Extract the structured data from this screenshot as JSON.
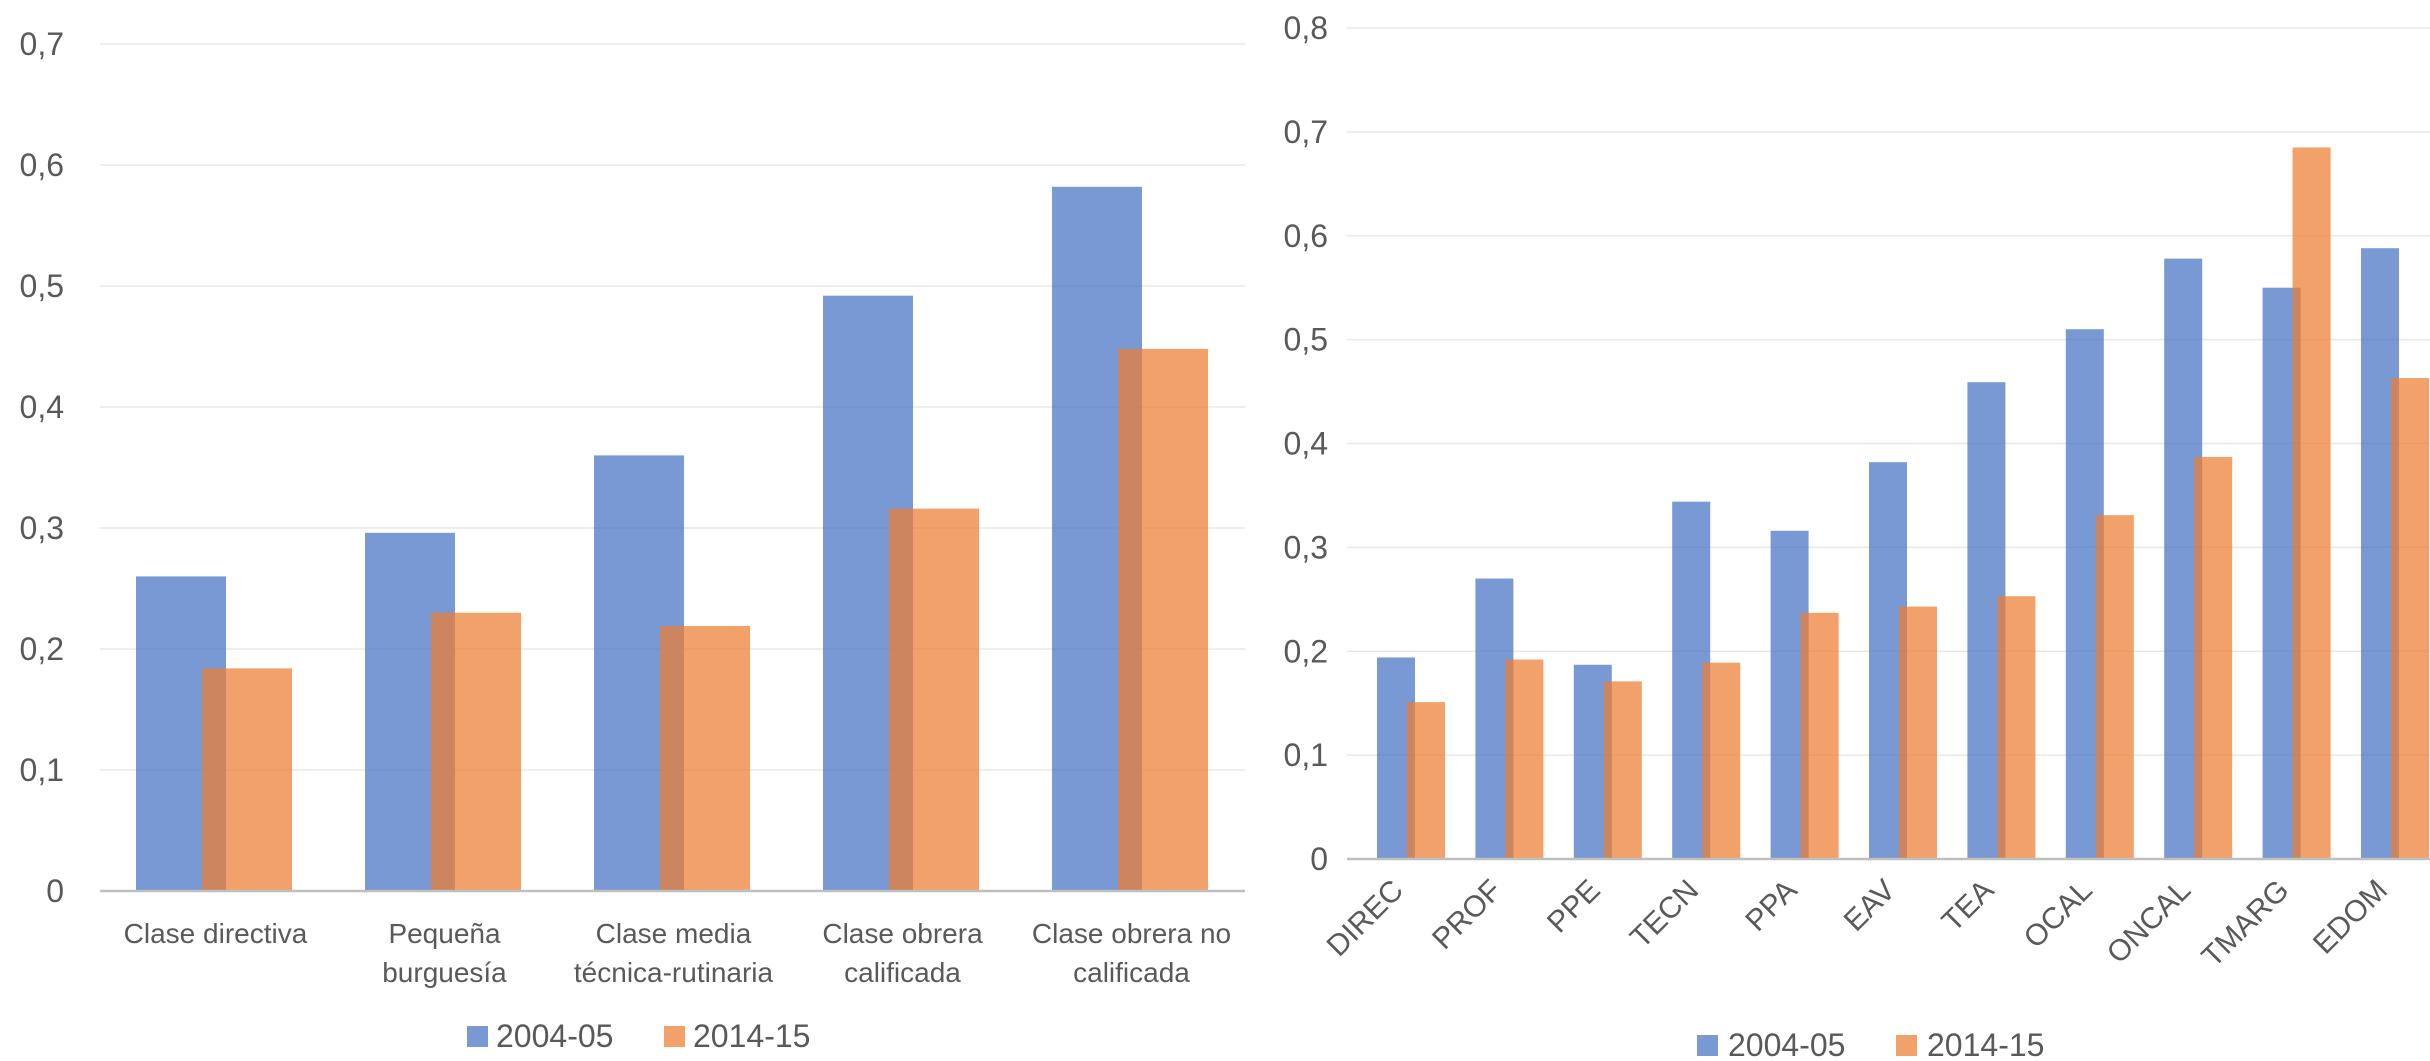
{
  "chart_data": [
    {
      "type": "bar",
      "categories": [
        "Clase directiva",
        "Pequeña burguesía",
        "Clase media técnica-rutinaria",
        "Clase obrera calificada",
        "Clase obrera no calificada"
      ],
      "category_lines": [
        [
          "Clase directiva"
        ],
        [
          "Pequeña",
          "burguesía"
        ],
        [
          "Clase media",
          "técnica-rutinaria"
        ],
        [
          "Clase obrera",
          "calificada"
        ],
        [
          "Clase obrera no",
          "calificada"
        ]
      ],
      "series": [
        {
          "name": "2004-05",
          "values": [
            0.26,
            0.296,
            0.36,
            0.492,
            0.582
          ]
        },
        {
          "name": "2014-15",
          "values": [
            0.184,
            0.23,
            0.219,
            0.316,
            0.448
          ]
        }
      ],
      "ylim": [
        0,
        0.7
      ],
      "yticks": [
        "0",
        "0,1",
        "0,2",
        "0,3",
        "0,4",
        "0,5",
        "0,6",
        "0,7"
      ],
      "grid": true,
      "legend": "bottom"
    },
    {
      "type": "bar",
      "categories": [
        "DIREC",
        "PROF",
        "PPE",
        "TECN",
        "PPA",
        "EAV",
        "TEA",
        "OCAL",
        "ONCAL",
        "TMARG",
        "EDOM"
      ],
      "series": [
        {
          "name": "2004-05",
          "values": [
            0.194,
            0.27,
            0.187,
            0.344,
            0.316,
            0.382,
            0.459,
            0.51,
            0.578,
            0.55,
            0.588
          ]
        },
        {
          "name": "2014-15",
          "values": [
            0.151,
            0.192,
            0.171,
            0.189,
            0.237,
            0.243,
            0.253,
            0.331,
            0.387,
            0.685,
            0.463
          ]
        }
      ],
      "ylim": [
        0,
        0.8
      ],
      "yticks": [
        "0",
        "0,1",
        "0,2",
        "0,3",
        "0,4",
        "0,5",
        "0,6",
        "0,7",
        "0,8"
      ],
      "grid": true,
      "legend": "bottom"
    }
  ],
  "colors": {
    "series_a": "#4472C4",
    "series_b": "#ED7D31",
    "grid": "#E8E8E8",
    "axis": "#BFBFBF",
    "text": "#595959"
  }
}
